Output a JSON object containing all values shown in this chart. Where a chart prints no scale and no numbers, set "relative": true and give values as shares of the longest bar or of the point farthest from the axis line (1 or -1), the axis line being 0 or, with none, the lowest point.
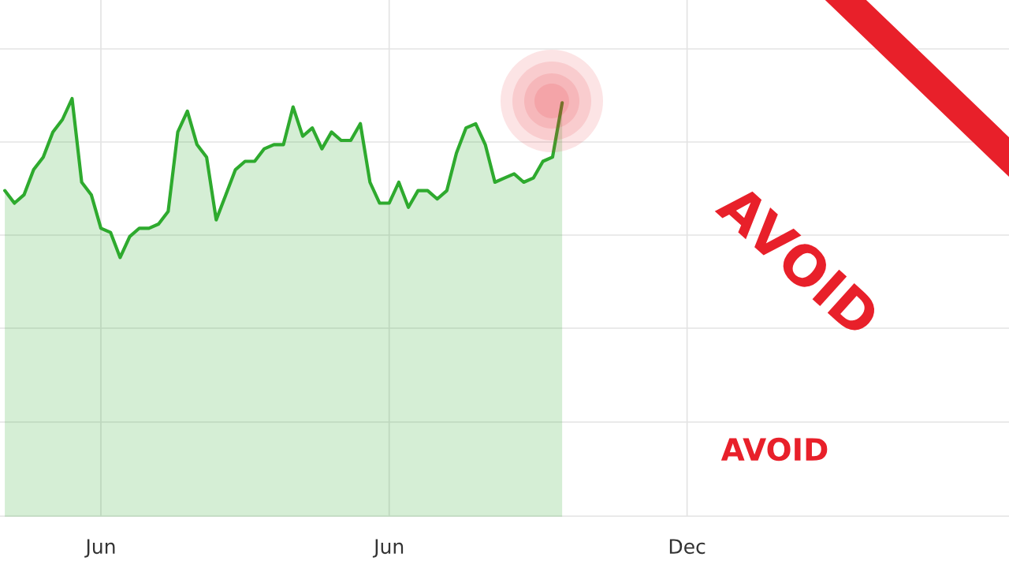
{
  "chart_data": {
    "type": "area",
    "relative": true,
    "categories": [
      null,
      null,
      null,
      null,
      null,
      null,
      null,
      null,
      null,
      null,
      "Jun",
      null,
      null,
      null,
      null,
      null,
      null,
      null,
      null,
      null,
      null,
      null,
      null,
      null,
      null,
      null,
      null,
      null,
      null,
      null,
      null,
      null,
      null,
      null,
      null,
      null,
      null,
      null,
      null,
      null,
      "Jun",
      null,
      null,
      null,
      null,
      null,
      null,
      null,
      null,
      null,
      null,
      null,
      null,
      null,
      null,
      null,
      null,
      null,
      null,
      null,
      null,
      null,
      null,
      null,
      null,
      null,
      null,
      null,
      null,
      null,
      null,
      "Dec",
      null,
      null,
      null,
      null,
      null,
      null,
      null,
      null,
      null,
      null,
      null,
      null,
      null,
      null,
      null,
      null,
      null,
      null,
      null,
      null,
      null,
      null,
      null,
      null,
      null,
      null,
      null,
      null,
      null,
      null,
      null,
      null,
      null
    ],
    "series": [
      {
        "color": "#2eaa2e",
        "values": [
          0.78,
          0.75,
          0.77,
          0.83,
          0.86,
          0.92,
          0.95,
          1.0,
          0.8,
          0.77,
          0.69,
          0.68,
          0.62,
          0.67,
          0.69,
          0.69,
          0.7,
          0.73,
          0.92,
          0.97,
          0.89,
          0.86,
          0.71,
          0.77,
          0.83,
          0.85,
          0.85,
          0.88,
          0.89,
          0.89,
          0.98,
          0.91,
          0.93,
          0.88,
          0.92,
          0.9,
          0.9,
          0.94,
          0.8,
          0.75,
          0.75,
          0.8,
          0.74,
          0.78,
          0.78,
          0.76,
          0.78,
          0.87,
          0.93,
          0.94,
          0.89,
          0.8,
          0.81,
          0.82,
          0.8,
          0.81,
          0.85,
          0.86,
          0.99,
          null,
          null,
          null,
          null,
          null,
          null,
          null,
          null,
          null,
          null,
          null,
          null,
          null,
          null,
          null,
          null,
          null,
          null,
          null,
          null,
          null,
          null,
          null,
          null,
          null,
          null,
          null,
          null,
          null,
          null,
          null,
          null,
          null,
          null,
          null,
          null,
          null,
          null,
          null,
          null,
          null,
          null,
          null,
          null,
          null,
          null
        ]
      }
    ],
    "annotations": [
      "AVOID",
      "AVOID"
    ],
    "grid": true,
    "tick_labels": "x"
  }
}
